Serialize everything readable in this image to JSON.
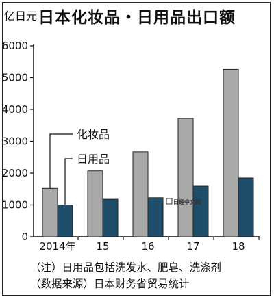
{
  "chart_data": {
    "type": "bar",
    "title": "日本化妆品・日用品出口额",
    "unit": "亿日元",
    "categories": [
      "2014年",
      "15",
      "16",
      "17",
      "18"
    ],
    "series": [
      {
        "name": "化妆品",
        "color": "#a9a9a9",
        "values": [
          1520,
          2070,
          2670,
          3720,
          5260
        ]
      },
      {
        "name": "日用品",
        "color": "#1f4e6b",
        "values": [
          1000,
          1180,
          1230,
          1590,
          1850
        ]
      }
    ],
    "ylim": [
      0,
      6000
    ],
    "yticks": [
      0,
      1000,
      2000,
      3000,
      4000,
      5000,
      6000
    ],
    "grid": false,
    "notes": [
      "（注）日用品包括洗发水、肥皂、洗涤剂",
      "（数据来源）日本财务省贸易统计"
    ],
    "watermark": "日经中文网"
  }
}
